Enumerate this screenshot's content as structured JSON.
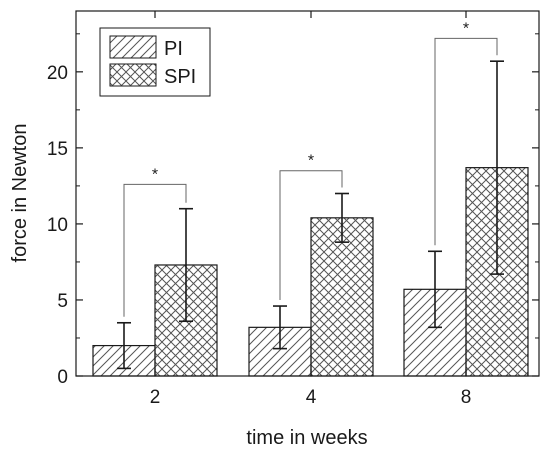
{
  "chart_data": {
    "type": "bar",
    "title": "",
    "xlabel": "time in weeks",
    "ylabel": "force in Newton",
    "categories": [
      "2",
      "4",
      "8"
    ],
    "ylim": [
      0,
      24
    ],
    "yticks": [
      0,
      5,
      10,
      15,
      20
    ],
    "series": [
      {
        "name": "PI",
        "pattern": "diagonal-hatch",
        "values": [
          2.0,
          3.2,
          5.7
        ],
        "error": [
          1.5,
          1.4,
          2.5
        ]
      },
      {
        "name": "SPI",
        "pattern": "cross-hatch",
        "values": [
          7.3,
          10.4,
          13.7
        ],
        "error": [
          3.7,
          1.6,
          7.0
        ]
      }
    ],
    "significance": [
      {
        "category": "2",
        "label": "*",
        "y": 12.6
      },
      {
        "category": "4",
        "label": "*",
        "y": 13.5
      },
      {
        "category": "8",
        "label": "*",
        "y": 22.2
      }
    ],
    "legend_position": "top-left",
    "grid": false
  },
  "colors": {
    "axis": "#1a1a1a",
    "bar_fill": "#ffffff",
    "hatch": "#555555",
    "bracket": "#555555"
  }
}
